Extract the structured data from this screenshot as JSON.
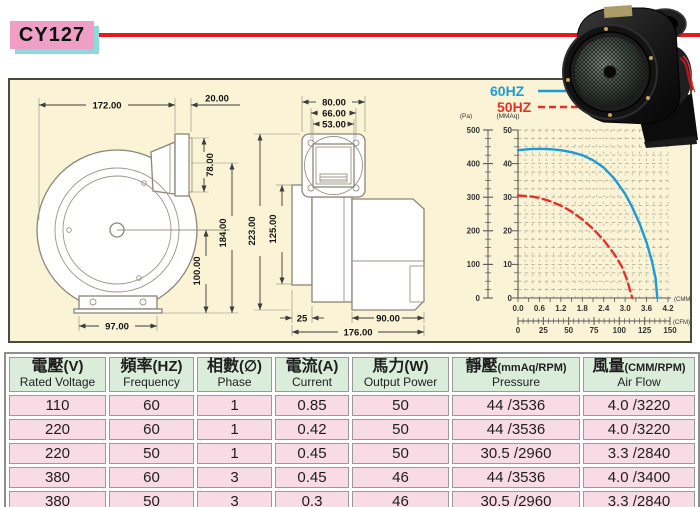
{
  "header": {
    "model": "CY127"
  },
  "photo": {
    "description": "black-centrifugal-blower-product-photo"
  },
  "diagrams": {
    "front": {
      "width_total": "172.00",
      "outlet_depth": "20.00",
      "outlet_height": "78.00",
      "height_total": "184.00",
      "center_height": "100.00",
      "base_width": "97.00"
    },
    "side": {
      "flange_width": "80.00",
      "bolt_spacing": "66.00",
      "opening_width": "53.00",
      "height_total": "223.00",
      "motor_height": "125.00",
      "foot_depth": "25",
      "motor_width": "90.00",
      "depth_total": "176.00"
    }
  },
  "chart_data": {
    "type": "line",
    "title": "",
    "grid": true,
    "legend_position": "top-left",
    "x_axis": {
      "label": "(CMM)",
      "range": [
        0,
        4.2
      ],
      "ticks": [
        "0.0",
        "0.6",
        "1.2",
        "1.8",
        "2.4",
        "3.0",
        "3.6",
        "4.2"
      ]
    },
    "x_axis_secondary": {
      "label": "(CFM)",
      "range": [
        0,
        150
      ],
      "ticks": [
        "0",
        "25",
        "50",
        "75",
        "100",
        "125",
        "150"
      ]
    },
    "y_axis_left": {
      "label": "(Pa)",
      "range": [
        0,
        500
      ],
      "ticks": [
        "500",
        "400",
        "300",
        "200",
        "100",
        "0"
      ]
    },
    "y_axis_right": {
      "label": "(MMAq)",
      "range": [
        0,
        50
      ],
      "ticks": [
        "50",
        "40",
        "30",
        "20",
        "10",
        "0"
      ]
    },
    "series": [
      {
        "name": "60HZ",
        "color": "#1b9cd8",
        "style": "solid",
        "points_cmm_mmaq": [
          [
            0,
            44
          ],
          [
            0.3,
            44.3
          ],
          [
            0.6,
            44.4
          ],
          [
            0.9,
            44.3
          ],
          [
            1.2,
            44
          ],
          [
            1.5,
            43.4
          ],
          [
            1.8,
            42.5
          ],
          [
            2.1,
            41
          ],
          [
            2.4,
            38.8
          ],
          [
            2.7,
            35.5
          ],
          [
            3.0,
            31
          ],
          [
            3.2,
            27
          ],
          [
            3.4,
            22.3
          ],
          [
            3.6,
            16.5
          ],
          [
            3.75,
            11
          ],
          [
            3.85,
            6
          ],
          [
            3.9,
            0
          ]
        ]
      },
      {
        "name": "50HZ",
        "color": "#e6302a",
        "style": "dashed",
        "points_cmm_mmaq": [
          [
            0,
            30.5
          ],
          [
            0.3,
            30.3
          ],
          [
            0.6,
            29.8
          ],
          [
            0.9,
            28.8
          ],
          [
            1.2,
            27.5
          ],
          [
            1.5,
            25.7
          ],
          [
            1.8,
            23.4
          ],
          [
            2.1,
            20.6
          ],
          [
            2.4,
            17.2
          ],
          [
            2.7,
            13
          ],
          [
            2.9,
            9.5
          ],
          [
            3.05,
            5.5
          ],
          [
            3.2,
            0
          ]
        ]
      }
    ]
  },
  "table": {
    "headers": [
      {
        "zh": "電壓",
        "unit": "(V)",
        "en": "Rated Voltage"
      },
      {
        "zh": "頻率",
        "unit": "(HZ)",
        "en": "Frequency"
      },
      {
        "zh": "相數",
        "unit": "(∅)",
        "en": "Phase"
      },
      {
        "zh": "電流",
        "unit": "(A)",
        "en": "Current"
      },
      {
        "zh": "馬力",
        "unit": "(W)",
        "en": "Output Power"
      },
      {
        "zh": "靜壓",
        "unit": "(mmAq/RPM)",
        "en": "Pressure"
      },
      {
        "zh": "風量",
        "unit": "(CMM/RPM)",
        "en": "Air Flow"
      }
    ],
    "rows": [
      [
        "110",
        "60",
        "1",
        "0.85",
        "50",
        "44 /3536",
        "4.0 /3220"
      ],
      [
        "220",
        "60",
        "1",
        "0.42",
        "50",
        "44 /3536",
        "4.0 /3220"
      ],
      [
        "220",
        "50",
        "1",
        "0.45",
        "50",
        "30.5 /2960",
        "3.3 /2840"
      ],
      [
        "380",
        "60",
        "3",
        "0.45",
        "46",
        "44 /3536",
        "4.0 /3400"
      ],
      [
        "380",
        "50",
        "3",
        "0.3",
        "46",
        "30.5 /2960",
        "3.3 /2840"
      ]
    ]
  },
  "colors": {
    "accent_red": "#e8191e",
    "model_bg": "#ef9fc6",
    "model_shadow": "#8fd8dc",
    "panel_bg": "#faf3d6",
    "table_header_green": "#d9edda",
    "table_row_pink": "#f8dbe4",
    "curve_60hz_blue": "#1b9cd8",
    "curve_50hz_red": "#e6302a"
  }
}
